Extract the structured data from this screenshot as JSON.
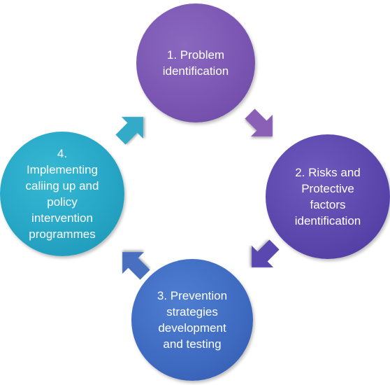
{
  "diagram": {
    "nodes": [
      {
        "label": "1. Problem\nidentification",
        "color": "#7b57b3"
      },
      {
        "label": "2. Risks and\nProtective\nfactors\nidentification",
        "color": "#5c47ad"
      },
      {
        "label": "3. Prevention\nstrategies\ndevelopment\nand testing",
        "color": "#3f6cc2"
      },
      {
        "label": "4.\nImplementing\ncaliing up and\npolicy\nintervention\nprogrammes",
        "color": "#27a6c6"
      }
    ],
    "arrow_colors": [
      "#8a5fb6",
      "#5a46b0",
      "#4a70c0",
      "#31aac8"
    ]
  }
}
